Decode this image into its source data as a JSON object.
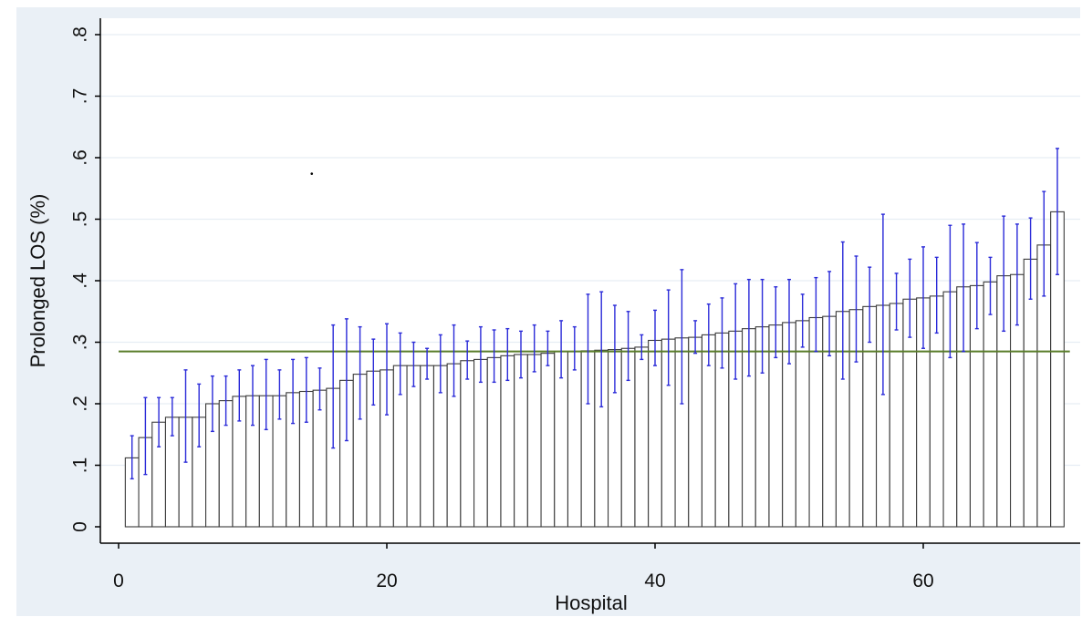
{
  "chart_data": {
    "type": "bar",
    "title": "",
    "xlabel": "Hospital",
    "ylabel": "Prolonged LOS (%)",
    "xlim": [
      0,
      71
    ],
    "ylim": [
      0,
      0.8
    ],
    "x_ticks": [
      0,
      20,
      40,
      60
    ],
    "x_tick_labels": [
      "0",
      "20",
      "40",
      "60"
    ],
    "y_ticks": [
      0,
      0.1,
      0.2,
      0.3,
      0.4,
      0.5,
      0.6,
      0.7,
      0.8
    ],
    "y_tick_labels": [
      "0",
      ".1",
      ".2",
      ".3",
      ".4",
      ".5",
      ".6",
      ".7",
      ".8"
    ],
    "grid": "horizontal",
    "reference_line": {
      "y": 0.285,
      "color": "#5a7d2a"
    },
    "error_bar_color": "#2a2ad8",
    "bar_edge_color": "#3a3a3a",
    "x": [
      1,
      2,
      3,
      4,
      5,
      6,
      7,
      8,
      9,
      10,
      11,
      12,
      13,
      14,
      15,
      16,
      17,
      18,
      19,
      20,
      21,
      22,
      23,
      24,
      25,
      26,
      27,
      28,
      29,
      30,
      31,
      32,
      33,
      34,
      35,
      36,
      37,
      38,
      39,
      40,
      41,
      42,
      43,
      44,
      45,
      46,
      47,
      48,
      49,
      50,
      51,
      52,
      53,
      54,
      55,
      56,
      57,
      58,
      59,
      60,
      61,
      62,
      63,
      64,
      65,
      66,
      67,
      68,
      69,
      70
    ],
    "values": [
      0.112,
      0.145,
      0.17,
      0.178,
      0.178,
      0.178,
      0.2,
      0.205,
      0.212,
      0.213,
      0.213,
      0.213,
      0.218,
      0.22,
      0.222,
      0.225,
      0.238,
      0.248,
      0.253,
      0.255,
      0.262,
      0.262,
      0.262,
      0.262,
      0.265,
      0.27,
      0.272,
      0.275,
      0.278,
      0.28,
      0.28,
      0.282,
      0.285,
      0.285,
      0.286,
      0.287,
      0.288,
      0.29,
      0.292,
      0.303,
      0.305,
      0.307,
      0.308,
      0.312,
      0.315,
      0.318,
      0.322,
      0.325,
      0.328,
      0.332,
      0.335,
      0.34,
      0.342,
      0.35,
      0.353,
      0.358,
      0.36,
      0.363,
      0.37,
      0.372,
      0.375,
      0.382,
      0.39,
      0.392,
      0.398,
      0.408,
      0.41,
      0.435,
      0.458,
      0.512
    ],
    "ci_low": [
      0.078,
      0.085,
      0.13,
      0.148,
      0.105,
      0.13,
      0.155,
      0.165,
      0.172,
      0.165,
      0.158,
      0.175,
      0.168,
      0.17,
      0.19,
      0.128,
      0.14,
      0.175,
      0.198,
      0.182,
      0.215,
      0.228,
      0.24,
      0.218,
      0.212,
      0.24,
      0.235,
      0.235,
      0.238,
      0.242,
      0.252,
      0.262,
      0.242,
      0.255,
      0.2,
      0.195,
      0.218,
      0.238,
      0.272,
      0.262,
      0.23,
      0.2,
      0.282,
      0.262,
      0.258,
      0.24,
      0.245,
      0.25,
      0.275,
      0.265,
      0.292,
      0.285,
      0.278,
      0.24,
      0.268,
      0.3,
      0.215,
      0.32,
      0.308,
      0.29,
      0.315,
      0.275,
      0.285,
      0.322,
      0.345,
      0.318,
      0.328,
      0.37,
      0.375,
      0.41
    ],
    "ci_high": [
      0.148,
      0.21,
      0.21,
      0.21,
      0.255,
      0.232,
      0.245,
      0.245,
      0.255,
      0.262,
      0.272,
      0.255,
      0.272,
      0.275,
      0.258,
      0.328,
      0.338,
      0.325,
      0.305,
      0.33,
      0.315,
      0.3,
      0.29,
      0.312,
      0.328,
      0.302,
      0.325,
      0.32,
      0.322,
      0.318,
      0.328,
      0.318,
      0.335,
      0.325,
      0.378,
      0.382,
      0.36,
      0.35,
      0.312,
      0.352,
      0.385,
      0.418,
      0.335,
      0.362,
      0.372,
      0.395,
      0.402,
      0.402,
      0.39,
      0.402,
      0.378,
      0.405,
      0.415,
      0.463,
      0.44,
      0.422,
      0.508,
      0.412,
      0.435,
      0.455,
      0.438,
      0.49,
      0.492,
      0.462,
      0.438,
      0.505,
      0.492,
      0.502,
      0.545,
      0.615
    ]
  }
}
